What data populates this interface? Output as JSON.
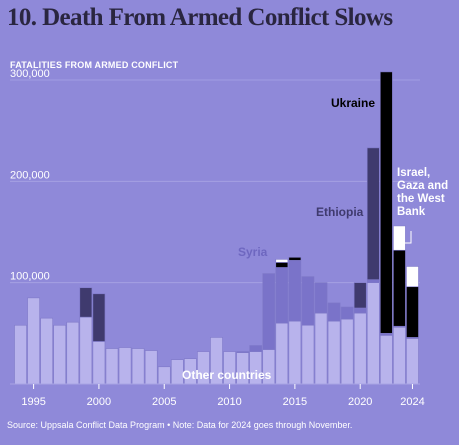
{
  "header": {
    "title": "10. Death From Armed Conflict Slows",
    "subtitle": "FATALITIES FROM ARMED CONFLICT"
  },
  "footer": {
    "source": "Source: Uppsala Conflict Data Program  •  Note: Data for 2024 goes through November."
  },
  "colors": {
    "background": "#8f89d9",
    "other": "#b8b3ec",
    "outline": "#7f79c8",
    "ethiopia": "#3f3a6e",
    "syria": "#7a73c9",
    "ukraine": "#000000",
    "israel_gaza": "#ffffff",
    "gridline": "#a9a4e4",
    "text": "#ffffff",
    "label_dark": "#2a2640",
    "label_syria": "#6e67c0"
  },
  "chart_data": {
    "type": "bar",
    "stacked": true,
    "title": "10. Death From Armed Conflict Slows",
    "ylabel": "FATALITIES FROM ARMED CONFLICT",
    "ylim": [
      0,
      310000
    ],
    "yticks": [
      100000,
      200000,
      300000
    ],
    "ytick_labels": [
      "100,000",
      "200,000",
      "300,000"
    ],
    "xticks": [
      1995,
      2000,
      2005,
      2010,
      2015,
      2020,
      2024
    ],
    "xtick_labels": [
      "1995",
      "2000",
      "2005",
      "2010",
      "2015",
      "2020",
      "2024"
    ],
    "grid": true,
    "x": [
      1994,
      1995,
      1996,
      1997,
      1998,
      1999,
      2000,
      2001,
      2002,
      2003,
      2004,
      2005,
      2006,
      2007,
      2008,
      2009,
      2010,
      2011,
      2012,
      2013,
      2014,
      2015,
      2016,
      2017,
      2018,
      2019,
      2020,
      2021,
      2022,
      2023,
      2024
    ],
    "series": [
      {
        "name": "Other countries",
        "key": "other",
        "values": [
          58000,
          85000,
          65000,
          58000,
          61000,
          66000,
          42000,
          35000,
          36000,
          35000,
          33000,
          17000,
          24000,
          25000,
          32000,
          46000,
          32000,
          31000,
          32000,
          34000,
          60000,
          62000,
          58000,
          70000,
          62000,
          64000,
          70000,
          100000,
          48000,
          56000,
          45000
        ]
      },
      {
        "name": "Syria",
        "key": "syria",
        "values": [
          0,
          0,
          0,
          0,
          0,
          0,
          0,
          0,
          0,
          0,
          0,
          0,
          0,
          0,
          0,
          0,
          0,
          1000,
          6000,
          75000,
          55000,
          60000,
          48000,
          30000,
          18000,
          12000,
          5000,
          3000,
          2000,
          1000,
          1000
        ]
      },
      {
        "name": "Ethiopia",
        "key": "ethiopia",
        "values": [
          0,
          0,
          0,
          0,
          0,
          29000,
          47000,
          0,
          0,
          0,
          0,
          0,
          0,
          0,
          0,
          0,
          0,
          0,
          0,
          0,
          0,
          0,
          0,
          0,
          0,
          0,
          25000,
          130000,
          0,
          0,
          0
        ]
      },
      {
        "name": "Ukraine",
        "key": "ukraine",
        "values": [
          0,
          0,
          0,
          0,
          0,
          0,
          0,
          0,
          0,
          0,
          0,
          0,
          0,
          0,
          0,
          0,
          0,
          0,
          0,
          0,
          5000,
          3000,
          0,
          0,
          0,
          0,
          0,
          0,
          258000,
          75000,
          50000
        ]
      },
      {
        "name": "Israel, Gaza and the West Bank",
        "key": "israel_gaza",
        "values": [
          0,
          0,
          0,
          0,
          0,
          0,
          0,
          0,
          0,
          0,
          0,
          0,
          0,
          0,
          0,
          0,
          0,
          0,
          0,
          0,
          3000,
          0,
          0,
          0,
          0,
          0,
          0,
          0,
          0,
          24000,
          20000
        ]
      }
    ],
    "annotations": [
      {
        "text": "Ukraine",
        "series": "ukraine"
      },
      {
        "text": "Israel,",
        "series": "israel_gaza",
        "line": 1
      },
      {
        "text": "Gaza and",
        "series": "israel_gaza",
        "line": 2
      },
      {
        "text": "the West",
        "series": "israel_gaza",
        "line": 3
      },
      {
        "text": "Bank",
        "series": "israel_gaza",
        "line": 4
      },
      {
        "text": "Ethiopia",
        "series": "ethiopia"
      },
      {
        "text": "Syria",
        "series": "syria"
      },
      {
        "text": "Other countries",
        "series": "other"
      }
    ]
  }
}
